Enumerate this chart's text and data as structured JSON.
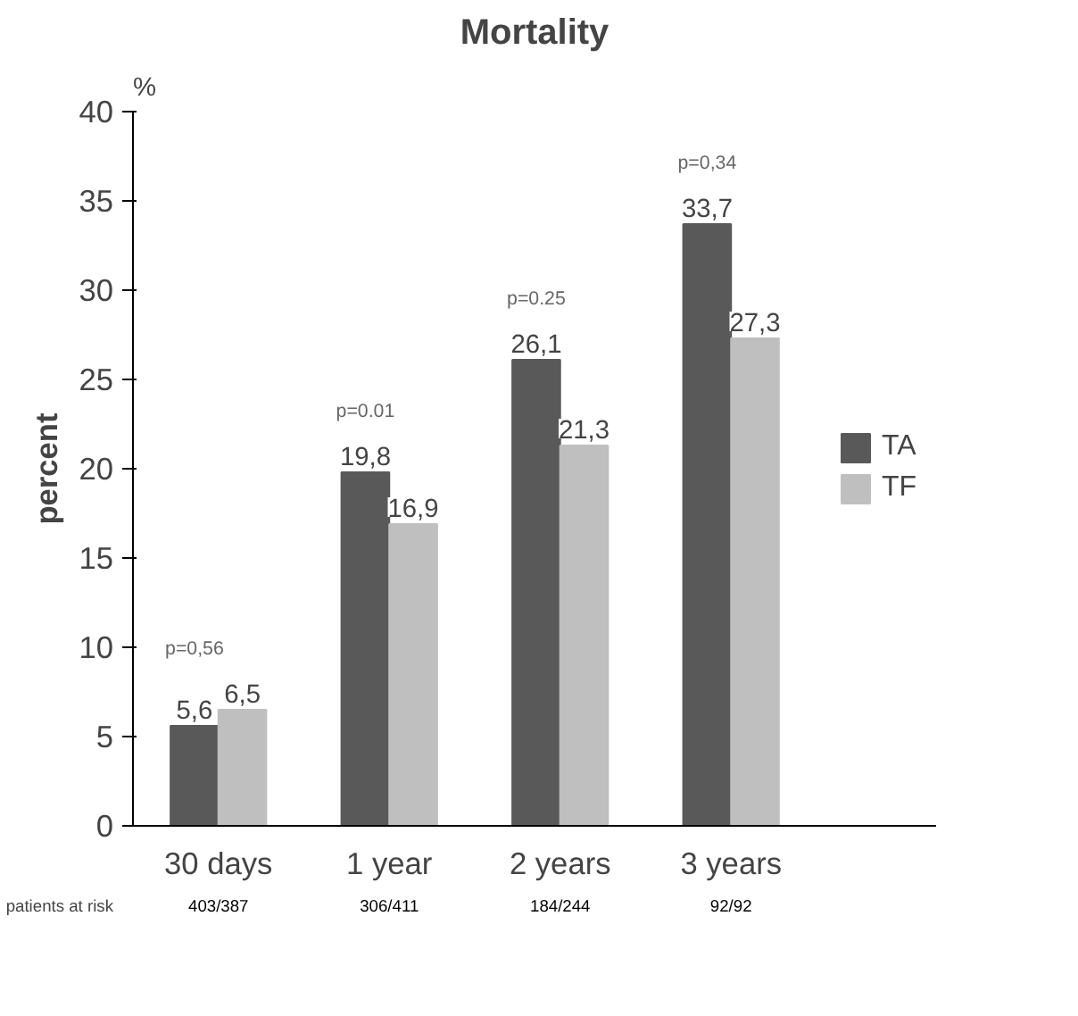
{
  "chart_data": {
    "type": "bar",
    "title": "Mortality",
    "ylabel": "percent",
    "categories": [
      "30 days",
      "1 year",
      "2 years",
      "3 years"
    ],
    "series": [
      {
        "name": "TA",
        "color": "#595959",
        "values": [
          5.6,
          19.8,
          26.1,
          33.7
        ],
        "value_labels": [
          "5,6",
          "19,8",
          "26,1",
          "33,7"
        ]
      },
      {
        "name": "TF",
        "color": "#bfbfbf",
        "values": [
          6.5,
          16.9,
          21.3,
          27.3
        ],
        "value_labels": [
          "6,5",
          "16,9",
          "21,3",
          "27,3"
        ]
      }
    ],
    "ylim": [
      0,
      40
    ],
    "yticks": [
      0,
      5,
      10,
      15,
      20,
      25,
      30,
      35,
      40
    ],
    "legend": "right",
    "annotations": [
      "%",
      "p=0,56",
      "p=0.01",
      "p=0.25",
      "p=0,34",
      "patients at risk",
      "403/387",
      "306/411",
      "184/244",
      "92/92"
    ]
  }
}
